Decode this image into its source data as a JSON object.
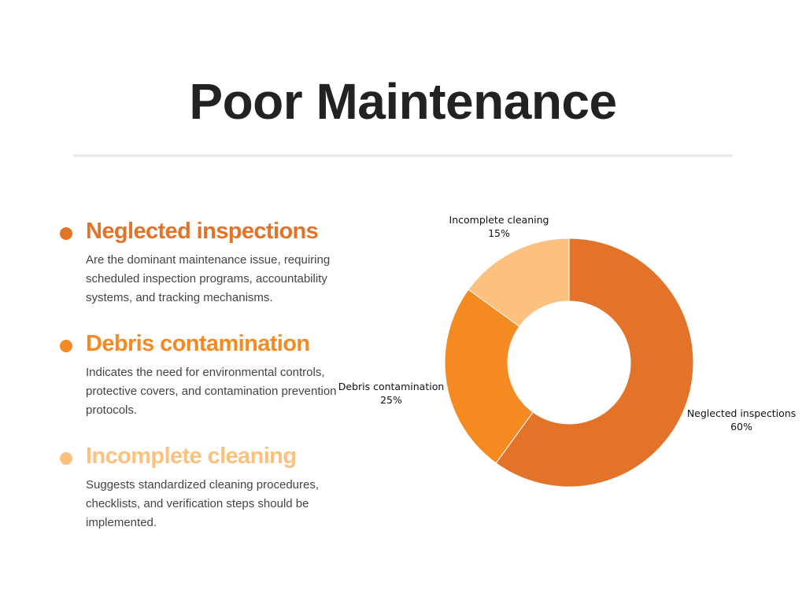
{
  "title": "Poor Maintenance",
  "items": [
    {
      "heading": "Neglected inspections",
      "description": "Are the dominant maintenance issue, requiring scheduled inspection programs, accountability systems, and tracking mechanisms.",
      "color": "#e4732a"
    },
    {
      "heading": "Debris contamination",
      "description": "Indicates the need for environmental controls, protective covers, and contamination prevention protocols.",
      "color": "#f58a23"
    },
    {
      "heading": "Incomplete cleaning",
      "description": "Suggests standardized cleaning procedures, checklists, and verification steps should be implemented.",
      "color": "#fcc17e"
    }
  ],
  "chart_data": {
    "type": "pie",
    "donut": true,
    "title": "",
    "slices": [
      {
        "label": "Neglected inspections",
        "value": 60,
        "value_label": "60%",
        "color": "#e4732a"
      },
      {
        "label": "Debris contamination",
        "value": 25,
        "value_label": "25%",
        "color": "#f58a23"
      },
      {
        "label": "Incomplete cleaning",
        "value": 15,
        "value_label": "15%",
        "color": "#fcc17e"
      }
    ],
    "legend": "none",
    "labels_position": "outside"
  }
}
